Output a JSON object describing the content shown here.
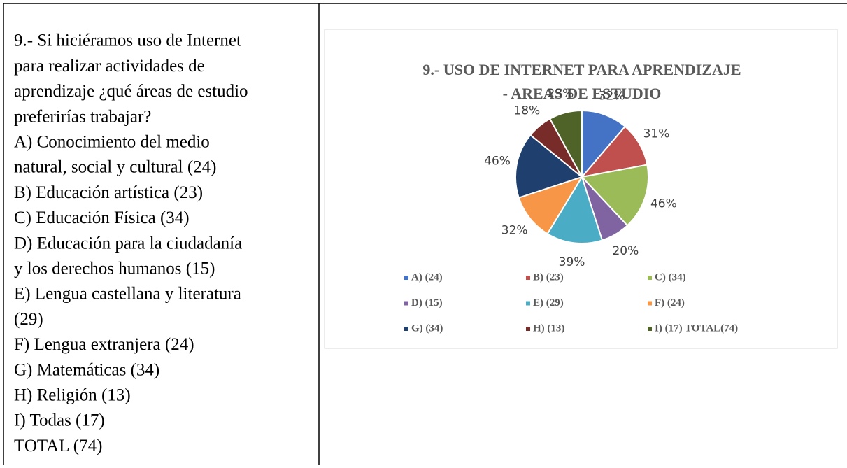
{
  "question": {
    "lines": [
      "9.- Si hiciéramos uso de Internet",
      "para realizar actividades de",
      "aprendizaje ¿qué áreas de estudio",
      "preferirías trabajar?",
      "A) Conocimiento del medio",
      "natural, social y cultural (24)",
      "B) Educación artística (23)",
      "C) Educación Física (34)",
      "D) Educación para la ciudadanía",
      "y los derechos humanos (15)",
      "E) Lengua castellana y literatura",
      "(29)",
      "F) Lengua extranjera (24)",
      "G) Matemáticas (34)",
      "H) Religión (13)",
      "I) Todas (17)",
      "TOTAL (74)"
    ]
  },
  "chart_data": {
    "type": "pie",
    "title": [
      "9.- USO DE INTERNET PARA APRENDIZAJE",
      "- AREAS DE ESTUDIO"
    ],
    "categories": [
      "A) (24)",
      "B) (23)",
      "C) (34)",
      "D) (15)",
      "E) (29)",
      "F) (24)",
      "G) (34)",
      "H) (13)",
      "I) (17)  TOTAL(74)"
    ],
    "values": [
      32.4,
      31.1,
      45.9,
      20.3,
      39.2,
      32.4,
      45.9,
      17.6,
      23.0
    ],
    "value_labels": [
      "32%",
      "31%",
      "46%",
      "20%",
      "39%",
      "32%",
      "46%",
      "18%",
      "23%"
    ],
    "colors": [
      "#4472c4",
      "#c0504d",
      "#9bbb59",
      "#8064a2",
      "#4bacc6",
      "#f79646",
      "#1f3f6e",
      "#772c2a",
      "#4f6228"
    ],
    "legend": "bottom"
  }
}
